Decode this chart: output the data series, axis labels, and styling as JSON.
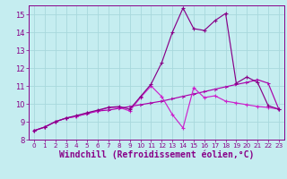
{
  "xlabel": "Windchill (Refroidissement éolien,°C)",
  "xlim": [
    -0.5,
    23.5
  ],
  "ylim": [
    8.0,
    15.5
  ],
  "yticks": [
    8,
    9,
    10,
    11,
    12,
    13,
    14,
    15
  ],
  "xticks": [
    0,
    1,
    2,
    3,
    4,
    5,
    6,
    7,
    8,
    9,
    10,
    11,
    12,
    13,
    14,
    15,
    16,
    17,
    18,
    19,
    20,
    21,
    22,
    23
  ],
  "bg_color": "#c5edf0",
  "grid_color": "#a8d8dc",
  "line_color1": "#aa00aa",
  "line_color2": "#cc22cc",
  "line_color3": "#880088",
  "font_color": "#880088",
  "font_size": 6,
  "axis_label_size": 7,
  "series1_x": [
    0,
    1,
    2,
    3,
    4,
    5,
    6,
    7,
    8,
    9,
    10,
    11,
    12,
    13,
    14,
    15,
    16,
    17,
    18,
    19,
    20,
    21,
    22,
    23
  ],
  "series1_y": [
    8.5,
    8.7,
    9.0,
    9.2,
    9.3,
    9.45,
    9.6,
    9.65,
    9.75,
    9.85,
    9.95,
    10.05,
    10.15,
    10.28,
    10.42,
    10.55,
    10.68,
    10.82,
    10.95,
    11.08,
    11.2,
    11.35,
    11.15,
    9.7
  ],
  "series2_x": [
    0,
    1,
    2,
    3,
    4,
    5,
    6,
    7,
    8,
    9,
    10,
    11,
    12,
    13,
    14,
    15,
    16,
    17,
    18,
    19,
    20,
    21,
    22,
    23
  ],
  "series2_y": [
    8.5,
    8.7,
    9.0,
    9.2,
    9.3,
    9.5,
    9.6,
    9.8,
    9.8,
    9.6,
    10.35,
    11.0,
    10.4,
    9.4,
    8.65,
    10.9,
    10.35,
    10.45,
    10.15,
    10.05,
    9.95,
    9.85,
    9.8,
    9.7
  ],
  "series3_x": [
    0,
    1,
    2,
    3,
    4,
    5,
    6,
    7,
    8,
    9,
    10,
    11,
    12,
    13,
    14,
    15,
    16,
    17,
    18,
    19,
    20,
    21,
    22,
    23
  ],
  "series3_y": [
    8.5,
    8.7,
    9.0,
    9.2,
    9.35,
    9.5,
    9.65,
    9.8,
    9.85,
    9.7,
    10.4,
    11.1,
    12.3,
    14.0,
    15.35,
    14.2,
    14.1,
    14.65,
    15.05,
    11.15,
    11.5,
    11.2,
    9.9,
    9.7
  ]
}
